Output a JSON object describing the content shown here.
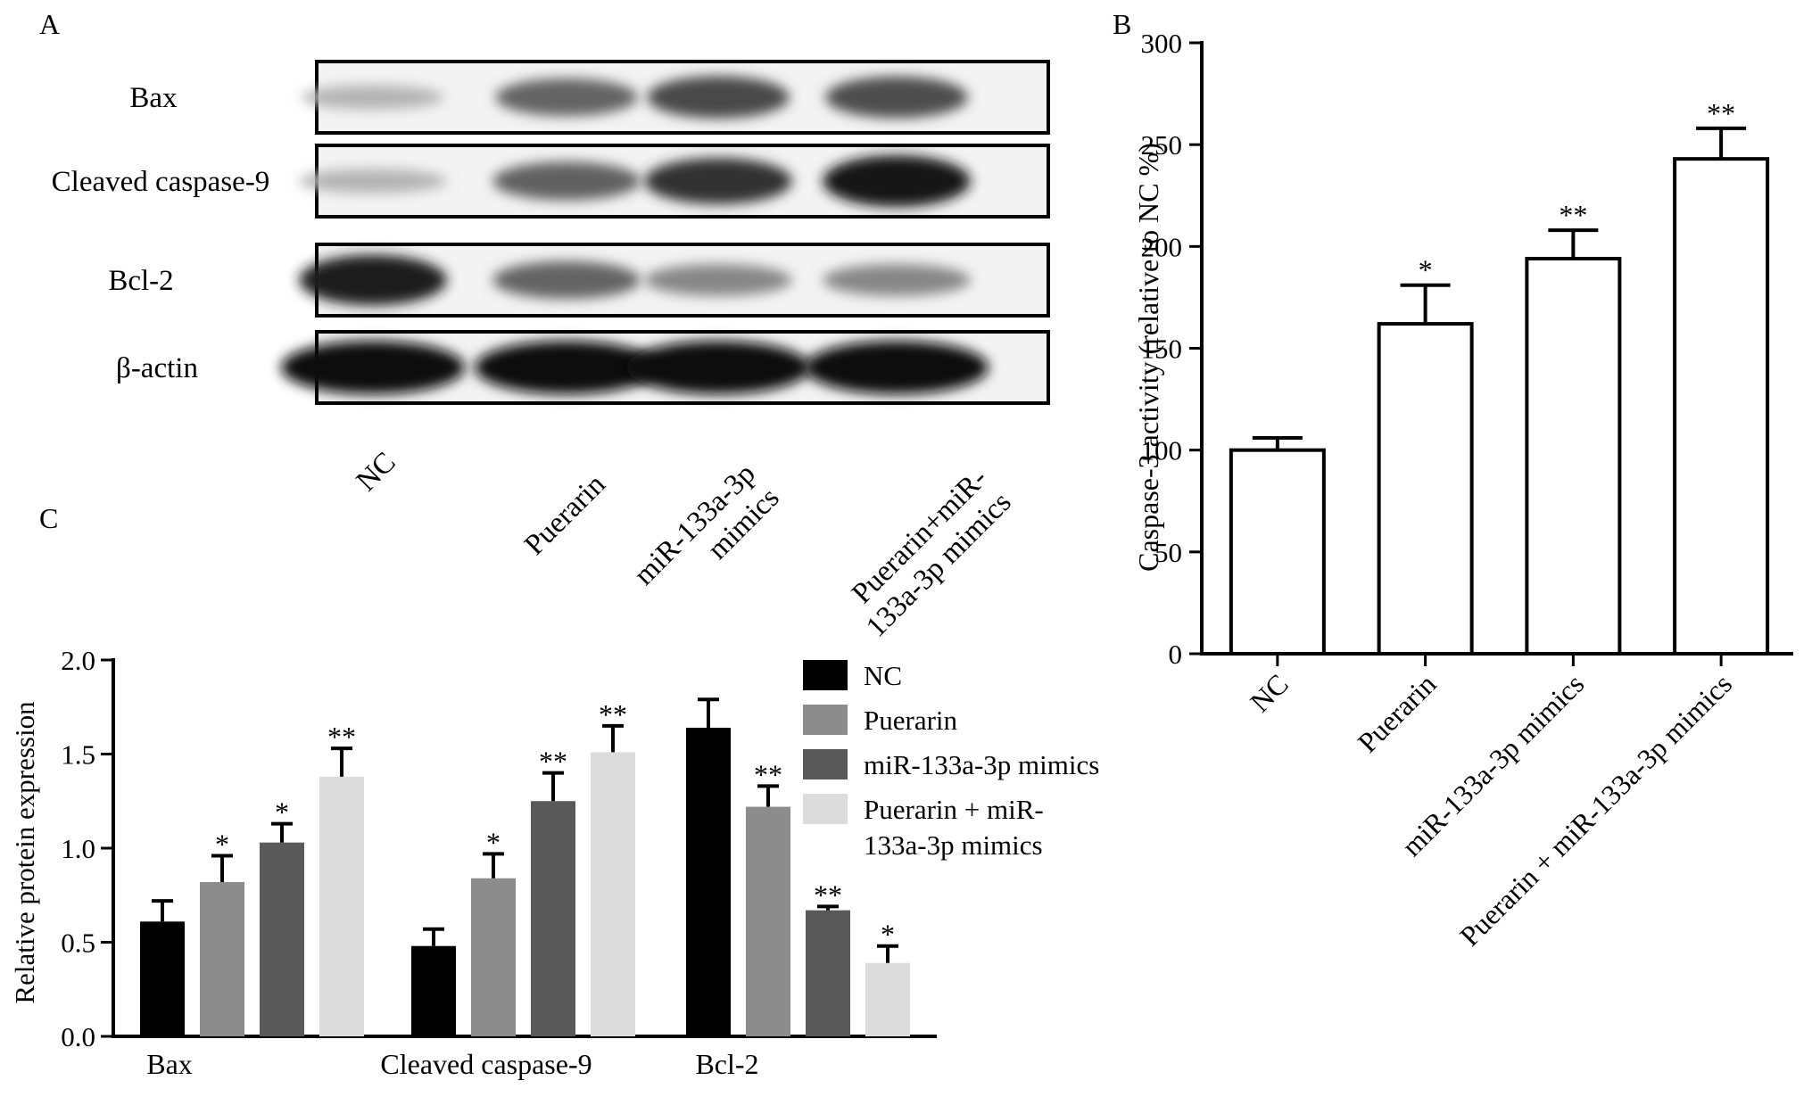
{
  "panels": {
    "a": {
      "label": "A"
    },
    "b": {
      "label": "B"
    },
    "c": {
      "label": "C"
    }
  },
  "blot": {
    "rows": [
      {
        "label": "Bax",
        "bands": [
          0.25,
          0.6,
          0.72,
          0.7
        ],
        "width": 0.55
      },
      {
        "label": "Cleaved caspase-9",
        "bands": [
          0.25,
          0.62,
          0.82,
          0.95
        ],
        "width": 0.6
      },
      {
        "label": "Bcl-2",
        "bands": [
          0.92,
          0.6,
          0.45,
          0.45
        ],
        "width": 0.6
      },
      {
        "label": "β-actin",
        "bands": [
          1.0,
          1.0,
          1.0,
          1.0
        ],
        "width": 0.95
      }
    ],
    "lanes": [
      {
        "label_lines": [
          "NC"
        ]
      },
      {
        "label_lines": [
          "Puerarin"
        ]
      },
      {
        "label_lines": [
          "miR-133a-3p",
          "mimics"
        ]
      },
      {
        "label_lines": [
          "Puerarin+miR-",
          "133a-3p mimics"
        ]
      }
    ]
  },
  "chart_data": [
    {
      "id": "B",
      "type": "bar",
      "ylabel": "Caspase-3 activity (relative to NC %)",
      "ylim": [
        0,
        300
      ],
      "yticks": [
        0,
        50,
        100,
        150,
        200,
        250,
        300
      ],
      "categories": [
        "NC",
        "Puerarin",
        "miR-133a-3p mimics",
        "Puerarin + miR-133a-3p mimics"
      ],
      "values": [
        100,
        162,
        194,
        243
      ],
      "errors": [
        6,
        19,
        14,
        15
      ],
      "annotations": [
        "",
        "*",
        "**",
        "**"
      ],
      "bar_color": "#ffffff",
      "edge_color": "#000000"
    },
    {
      "id": "C",
      "type": "bar",
      "ylabel": "Relative protein expression",
      "ylim": [
        0,
        2.0
      ],
      "yticks": [
        "0.0",
        "0.5",
        "1.0",
        "1.5",
        "2.0"
      ],
      "categories": [
        "Bax",
        "Cleaved caspase-9",
        "Bcl-2"
      ],
      "series": [
        {
          "name": "NC",
          "color": "#000000",
          "values": [
            0.61,
            0.48,
            1.64
          ],
          "errors": [
            0.11,
            0.09,
            0.15
          ],
          "annotations": [
            "",
            "",
            ""
          ]
        },
        {
          "name": "Puerarin",
          "color": "#8c8c8c",
          "values": [
            0.82,
            0.84,
            1.22
          ],
          "errors": [
            0.14,
            0.13,
            0.11
          ],
          "annotations": [
            "*",
            "*",
            "**"
          ]
        },
        {
          "name": "miR-133a-3p mimics",
          "color": "#595959",
          "values": [
            1.03,
            1.25,
            0.67
          ],
          "errors": [
            0.1,
            0.15,
            0.02
          ],
          "annotations": [
            "*",
            "**",
            "**"
          ]
        },
        {
          "name": "Puerarin + miR-133a-3p mimics",
          "legend_lines": [
            "Puerarin + miR-",
            "133a-3p mimics"
          ],
          "color": "#dcdcdc",
          "values": [
            1.38,
            1.51,
            0.39
          ],
          "errors": [
            0.15,
            0.14,
            0.09
          ],
          "annotations": [
            "**",
            "**",
            "*"
          ]
        }
      ]
    }
  ]
}
